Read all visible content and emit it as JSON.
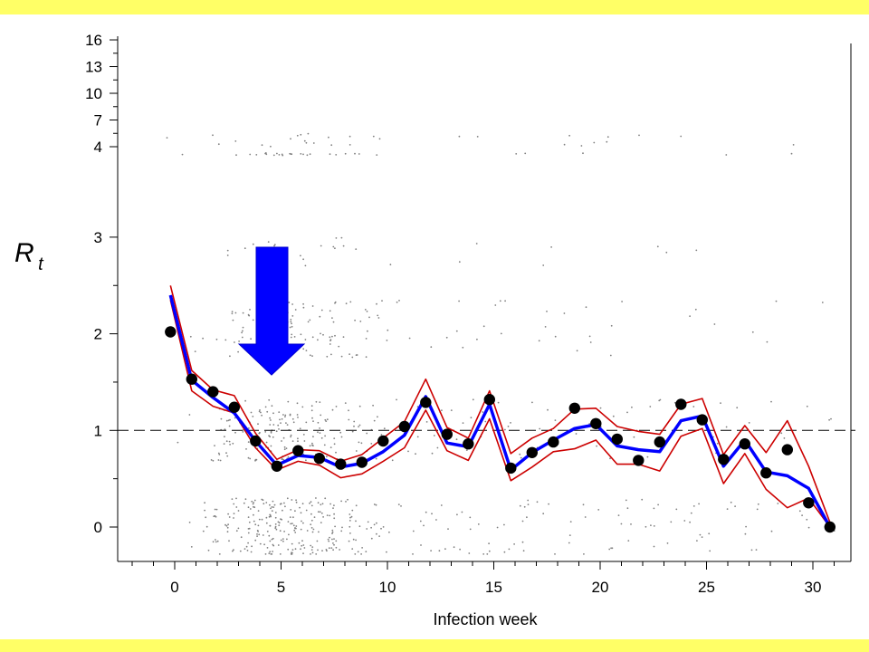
{
  "chart_data": {
    "type": "scatter",
    "title": "",
    "xlabel": "Infection week",
    "ylabel": {
      "main": "R",
      "sub": "t"
    },
    "xlim": [
      -1.5,
      31.5
    ],
    "x_ticks": [
      0,
      5,
      10,
      15,
      20,
      25,
      30
    ],
    "y_ticks_lower": [
      0,
      1,
      2,
      3
    ],
    "y_ticks_upper": [
      4,
      7,
      10,
      13,
      16
    ],
    "y_scale": "broken axis: linear 0-3 below, compressed 4-16 above",
    "reference_line": {
      "y": 1,
      "style": "dashed"
    },
    "annotation": {
      "type": "arrow",
      "direction": "down",
      "at_x": 4.6,
      "color": "#0000ff"
    },
    "colors": {
      "background_band": "#ffff66",
      "mean_line": "#0000ff",
      "ci_lines": "#cc0000",
      "points": "#000000",
      "scatter_cloud": "#808080"
    },
    "series": [
      {
        "role": "weekly estimate (black dots)",
        "x": [
          -0.2,
          0.8,
          1.8,
          2.8,
          3.8,
          4.8,
          5.8,
          6.8,
          7.8,
          8.8,
          9.8,
          10.8,
          11.8,
          12.8,
          13.8,
          14.8,
          15.8,
          16.8,
          17.8,
          18.8,
          19.8,
          20.8,
          21.8,
          22.8,
          23.8,
          24.8,
          25.8,
          26.8,
          27.8,
          28.8,
          29.8,
          30.8
        ],
        "values": [
          2.02,
          1.53,
          1.4,
          1.24,
          0.89,
          0.63,
          0.79,
          0.71,
          0.65,
          0.67,
          0.89,
          1.04,
          1.29,
          0.96,
          0.86,
          1.32,
          0.61,
          0.77,
          0.88,
          1.23,
          1.07,
          0.91,
          0.69,
          0.88,
          1.27,
          1.11,
          0.7,
          0.86,
          0.56,
          0.8,
          0.25,
          0.0
        ]
      },
      {
        "role": "smoothed mean (blue line)",
        "x": [
          -0.2,
          0.8,
          1.8,
          2.8,
          3.8,
          4.8,
          5.8,
          6.8,
          7.8,
          8.8,
          9.8,
          10.8,
          11.8,
          12.8,
          13.8,
          14.8,
          15.8,
          16.8,
          17.8,
          18.8,
          19.8,
          20.8,
          21.8,
          22.8,
          23.8,
          24.8,
          25.8,
          26.8,
          27.8,
          28.8,
          29.8,
          30.8
        ],
        "values": [
          2.4,
          1.52,
          1.34,
          1.18,
          0.89,
          0.64,
          0.74,
          0.72,
          0.62,
          0.66,
          0.78,
          0.95,
          1.35,
          0.87,
          0.83,
          1.27,
          0.59,
          0.77,
          0.9,
          1.02,
          1.06,
          0.84,
          0.8,
          0.78,
          1.1,
          1.15,
          0.63,
          0.9,
          0.57,
          0.53,
          0.4,
          0.0
        ]
      },
      {
        "role": "upper bound (red line)",
        "x": [
          -0.2,
          0.8,
          1.8,
          2.8,
          3.8,
          4.8,
          5.8,
          6.8,
          7.8,
          8.8,
          9.8,
          10.8,
          11.8,
          12.8,
          13.8,
          14.8,
          15.8,
          16.8,
          17.8,
          18.8,
          19.8,
          20.8,
          21.8,
          22.8,
          23.8,
          24.8,
          25.8,
          26.8,
          27.8,
          28.8,
          29.8,
          30.8
        ],
        "values": [
          2.5,
          1.62,
          1.42,
          1.36,
          0.97,
          0.7,
          0.8,
          0.79,
          0.68,
          0.75,
          0.92,
          1.09,
          1.53,
          1.03,
          0.92,
          1.41,
          0.76,
          0.92,
          1.02,
          1.22,
          1.23,
          1.04,
          0.99,
          0.96,
          1.27,
          1.33,
          0.75,
          1.05,
          0.77,
          1.1,
          0.63,
          0.05
        ]
      },
      {
        "role": "lower bound (red line)",
        "x": [
          -0.2,
          0.8,
          1.8,
          2.8,
          3.8,
          4.8,
          5.8,
          6.8,
          7.8,
          8.8,
          9.8,
          10.8,
          11.8,
          12.8,
          13.8,
          14.8,
          15.8,
          16.8,
          17.8,
          18.8,
          19.8,
          20.8,
          21.8,
          22.8,
          23.8,
          24.8,
          25.8,
          26.8,
          27.8,
          28.8,
          29.8,
          30.8
        ],
        "values": [
          2.35,
          1.41,
          1.25,
          1.18,
          0.82,
          0.59,
          0.68,
          0.64,
          0.51,
          0.55,
          0.68,
          0.82,
          1.21,
          0.79,
          0.69,
          1.12,
          0.48,
          0.62,
          0.78,
          0.81,
          0.9,
          0.65,
          0.65,
          0.58,
          0.94,
          1.02,
          0.45,
          0.76,
          0.39,
          0.2,
          0.3,
          0.0
        ]
      }
    ],
    "scatter_cloud": {
      "role": "individual case reproduction numbers (grey dots)",
      "weekly_counts": [
        3,
        10,
        40,
        70,
        95,
        120,
        100,
        80,
        60,
        40,
        20,
        12,
        14,
        15,
        18,
        14,
        15,
        10,
        10,
        14,
        12,
        12,
        10,
        10,
        10,
        10,
        8,
        8,
        6,
        5,
        5,
        3
      ]
    }
  }
}
